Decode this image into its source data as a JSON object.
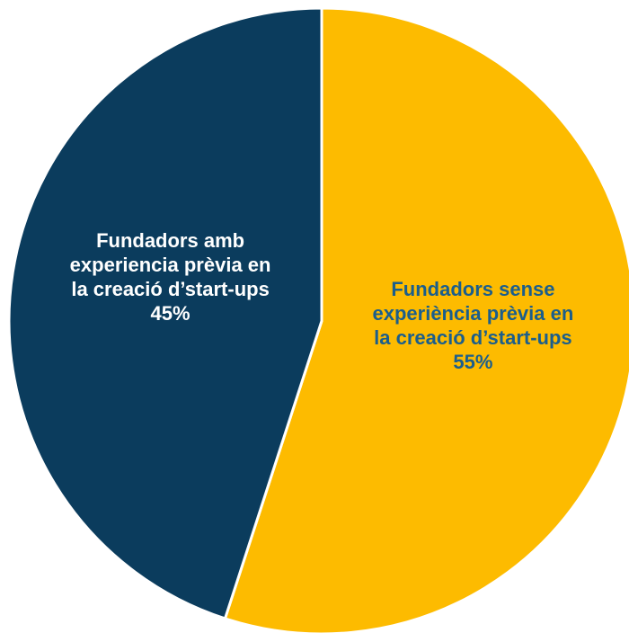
{
  "chart_data": {
    "type": "pie",
    "categories": [
      "Fundadors sense experiència prèvia en la creació d’start-ups",
      "Fundadors amb experiencia prèvia en la creació d’start-ups"
    ],
    "values": [
      55,
      45
    ],
    "value_labels": [
      "55%",
      "45%"
    ],
    "colors": [
      "#fdbb00",
      "#0b3c5d"
    ],
    "label_colors": [
      "#1b5e8c",
      "#ffffff"
    ]
  }
}
